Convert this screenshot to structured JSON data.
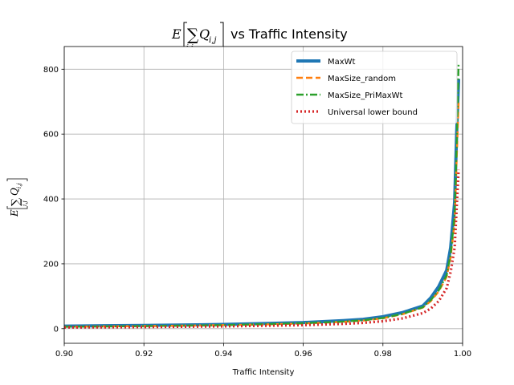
{
  "chart_data": {
    "type": "line",
    "title_prefix": "E",
    "title_sum_term": "Q",
    "title_sub": "i,j",
    "title_suffix": "vs Traffic Intensity",
    "xlabel": "Traffic Intensity",
    "ylabel_prefix": "E",
    "ylabel_sum_term": "Q",
    "ylabel_sub": "i,j",
    "xlim": [
      0.9,
      1.0
    ],
    "ylim": [
      -45,
      870
    ],
    "xticks": [
      0.9,
      0.92,
      0.94,
      0.96,
      0.98,
      1.0
    ],
    "xtick_labels": [
      "0.90",
      "0.92",
      "0.94",
      "0.96",
      "0.98",
      "1.00"
    ],
    "yticks": [
      0,
      200,
      400,
      600,
      800
    ],
    "ytick_labels": [
      "0",
      "200",
      "400",
      "600",
      "800"
    ],
    "grid": true,
    "legend_position": "top-right",
    "series": [
      {
        "name": "MaxWt",
        "color": "#1f77b4",
        "style": "solid",
        "x": [
          0.9,
          0.92,
          0.94,
          0.95,
          0.96,
          0.97,
          0.975,
          0.98,
          0.985,
          0.99,
          0.992,
          0.994,
          0.996,
          0.997,
          0.998,
          0.9985,
          0.999
        ],
        "y": [
          8,
          10,
          13,
          16,
          19,
          25,
          29,
          37,
          50,
          70,
          95,
          130,
          180,
          250,
          390,
          600,
          770
        ]
      },
      {
        "name": "MaxSize_random",
        "color": "#ff7f0e",
        "style": "dashed",
        "x": [
          0.9,
          0.92,
          0.94,
          0.95,
          0.96,
          0.97,
          0.975,
          0.98,
          0.985,
          0.99,
          0.992,
          0.994,
          0.996,
          0.997,
          0.998,
          0.9985,
          0.999
        ],
        "y": [
          6,
          8,
          11,
          13,
          16,
          21,
          25,
          32,
          45,
          65,
          85,
          115,
          160,
          220,
          330,
          520,
          700
        ]
      },
      {
        "name": "MaxSize_PriMaxWt",
        "color": "#2ca02c",
        "style": "dashdot",
        "x": [
          0.9,
          0.92,
          0.94,
          0.95,
          0.96,
          0.97,
          0.975,
          0.98,
          0.985,
          0.99,
          0.992,
          0.994,
          0.996,
          0.997,
          0.998,
          0.9985,
          0.999
        ],
        "y": [
          6,
          8,
          11,
          14,
          17,
          22,
          26,
          33,
          46,
          66,
          88,
          118,
          165,
          230,
          350,
          560,
          820
        ]
      },
      {
        "name": "Universal lower bound",
        "color": "#d62728",
        "style": "dotted",
        "x": [
          0.9,
          0.92,
          0.94,
          0.95,
          0.96,
          0.97,
          0.975,
          0.98,
          0.985,
          0.99,
          0.992,
          0.994,
          0.996,
          0.997,
          0.998,
          0.9985,
          0.999
        ],
        "y": [
          4,
          5,
          7,
          9,
          11,
          15,
          18,
          23,
          32,
          48,
          62,
          85,
          125,
          175,
          250,
          370,
          490
        ]
      }
    ]
  }
}
